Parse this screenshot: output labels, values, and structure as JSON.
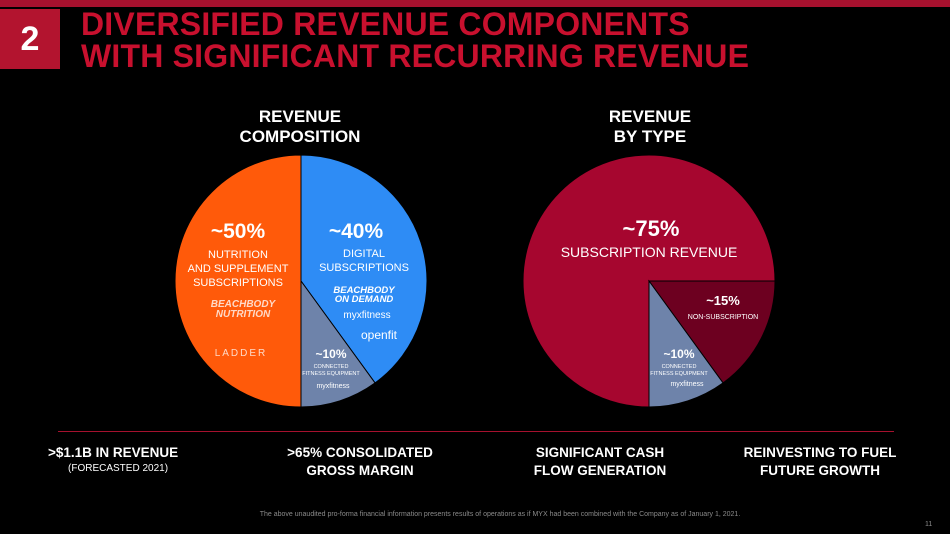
{
  "slide": {
    "number": "2",
    "title_line1": "DIVERSIFIED REVENUE COMPONENTS",
    "title_line2": "WITH SIGNIFICANT RECURRING REVENUE",
    "footnote": "The above unaudited pro-forma financial information presents results of operations as if MYX had been combined with the Company as of January 1, 2021.",
    "page_number": "11"
  },
  "colors": {
    "brand_red": "#c8102e",
    "orange": "#ff5a0a",
    "blue": "#2e8cf5",
    "slate": "#6e83aa",
    "crimson": "#a6062f",
    "dark_crimson": "#6d0020"
  },
  "logos": {
    "beachbody_nutrition": "BEACHBODY NUTRITION",
    "ladder": "LADDER",
    "beachbody_on_demand": "BEACHBODY ON DEMAND",
    "myx_fitness": "myxfitness",
    "openfit": "openfit"
  },
  "chart_data": [
    {
      "type": "pie",
      "title_line1": "REVENUE",
      "title_line2": "COMPOSITION",
      "slices": [
        {
          "pct_label": "~50%",
          "value": 50,
          "desc": [
            "NUTRITION",
            "AND SUPPLEMENT",
            "SUBSCRIPTIONS"
          ],
          "color": "#ff5a0a"
        },
        {
          "pct_label": "~40%",
          "value": 40,
          "desc": [
            "DIGITAL",
            "SUBSCRIPTIONS"
          ],
          "color": "#2e8cf5"
        },
        {
          "pct_label": "~10%",
          "value": 10,
          "desc": [
            "CONNECTED",
            "FITNESS EQUIPMENT"
          ],
          "color": "#6e83aa"
        }
      ]
    },
    {
      "type": "pie",
      "title_line1": "REVENUE",
      "title_line2": "BY TYPE",
      "slices": [
        {
          "pct_label": "~75%",
          "value": 75,
          "desc": [
            "SUBSCRIPTION REVENUE"
          ],
          "color": "#a6062f"
        },
        {
          "pct_label": "~15%",
          "value": 15,
          "desc": [
            "NON-SUBSCRIPTION"
          ],
          "color": "#6d0020"
        },
        {
          "pct_label": "~10%",
          "value": 10,
          "desc": [
            "CONNECTED",
            "FITNESS EQUIPMENT"
          ],
          "color": "#6e83aa"
        }
      ]
    }
  ],
  "stats": [
    {
      "line1": ">$1.1B IN REVENUE",
      "line2": "(FORECASTED 2021)"
    },
    {
      "line1": ">65% CONSOLIDATED",
      "line2": "GROSS MARGIN"
    },
    {
      "line1": "SIGNIFICANT CASH",
      "line2": "FLOW GENERATION"
    },
    {
      "line1": "REINVESTING TO FUEL",
      "line2": "FUTURE GROWTH"
    }
  ]
}
